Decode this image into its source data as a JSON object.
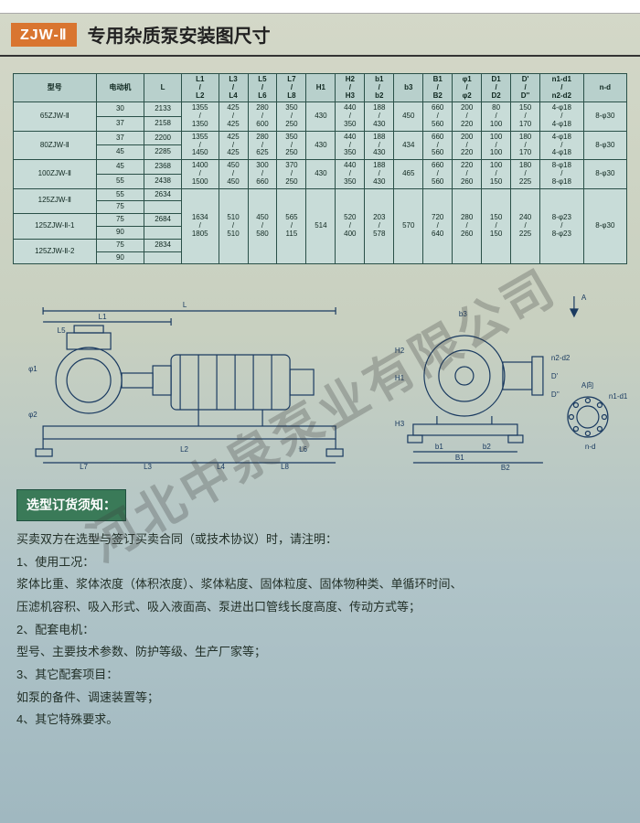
{
  "header": {
    "badge": "ZJW-Ⅱ",
    "title": "专用杂质泵安装图尺寸"
  },
  "table": {
    "headers": [
      "型号",
      "电动机",
      "L",
      "L1\n/\nL2",
      "L3\n/\nL4",
      "L5\n/\nL6",
      "L7\n/\nL8",
      "H1",
      "H2\n/\nH3",
      "b1\n/\nb2",
      "b3",
      "B1\n/\nB2",
      "φ1\n/\nφ2",
      "D1\n/\nD2",
      "D'\n/\nD''",
      "n1-d1\n/\nn2-d2",
      "n-d"
    ],
    "rows": [
      [
        "65ZJW-Ⅱ",
        "30",
        "2133",
        "1355\n/\n1350",
        "425\n/\n425",
        "280\n/\n600",
        "350\n/\n250",
        "430",
        "440\n/\n350",
        "188\n/\n430",
        "450",
        "660\n/\n560",
        "200\n/\n220",
        "80\n/\n100",
        "150\n/\n170",
        "4-φ18\n/\n4-φ18",
        "8-φ30"
      ],
      [
        "",
        "37",
        "2158",
        "",
        "",
        "",
        "",
        "",
        "",
        "",
        "",
        "",
        "",
        "",
        "",
        "",
        ""
      ],
      [
        "80ZJW-Ⅱ",
        "37",
        "2200",
        "1355\n/\n1450",
        "425\n/\n425",
        "280\n/\n625",
        "350\n/\n250",
        "430",
        "440\n/\n350",
        "188\n/\n430",
        "434",
        "660\n/\n560",
        "200\n/\n220",
        "100\n/\n100",
        "180\n/\n170",
        "4-φ18\n/\n4-φ18",
        "8-φ30"
      ],
      [
        "",
        "45",
        "2285",
        "",
        "",
        "",
        "",
        "",
        "",
        "",
        "",
        "",
        "",
        "",
        "",
        "",
        ""
      ],
      [
        "100ZJW-Ⅱ",
        "45",
        "2368",
        "1400\n/\n1500",
        "450\n/\n450",
        "300\n/\n660",
        "370\n/\n250",
        "430",
        "440\n/\n350",
        "188\n/\n430",
        "465",
        "660\n/\n560",
        "220\n/\n260",
        "100\n/\n150",
        "180\n/\n225",
        "8-φ18\n/\n8-φ18",
        "8-φ30"
      ],
      [
        "",
        "55",
        "2438",
        "",
        "",
        "",
        "",
        "",
        "",
        "",
        "",
        "",
        "",
        "",
        "",
        "",
        ""
      ],
      [
        "125ZJW-Ⅱ",
        "55",
        "2634",
        "1634\n/\n1805",
        "510\n/\n510",
        "450\n/\n580",
        "565\n/\n115",
        "514",
        "520\n/\n400",
        "203\n/\n578",
        "570",
        "720\n/\n640",
        "280\n/\n260",
        "150\n/\n150",
        "240\n/\n225",
        "8-φ23\n/\n8-φ23",
        "8-φ30"
      ],
      [
        "",
        "75",
        "",
        "",
        "",
        "",
        "",
        "",
        "",
        "",
        "",
        "",
        "",
        "",
        "",
        "",
        ""
      ],
      [
        "125ZJW-Ⅱ-1",
        "75",
        "2684",
        "",
        "",
        "",
        "",
        "",
        "",
        "",
        "",
        "",
        "",
        "",
        "",
        "",
        ""
      ],
      [
        "",
        "90",
        "",
        "",
        "",
        "",
        "",
        "",
        "",
        "",
        "",
        "",
        "",
        "",
        "",
        "",
        ""
      ],
      [
        "125ZJW-Ⅱ-2",
        "75",
        "2834",
        "",
        "",
        "",
        "",
        "",
        "",
        "",
        "",
        "",
        "",
        "",
        "",
        "",
        ""
      ],
      [
        "",
        "90",
        "",
        "",
        "",
        "",
        "",
        "",
        "",
        "",
        "",
        "",
        "",
        "",
        "",
        "",
        ""
      ]
    ]
  },
  "diagram": {
    "left_labels": [
      "L1",
      "L5",
      "L",
      "L3",
      "L4",
      "L6",
      "L7",
      "L8",
      "L2",
      "φ1",
      "φ2"
    ],
    "right_labels": [
      "A",
      "b1",
      "b2",
      "b3",
      "B1",
      "B2",
      "H1",
      "H2",
      "H3",
      "D'",
      "D''",
      "n1-d1",
      "n2-d2",
      "n-d",
      "A向"
    ]
  },
  "notes": {
    "heading": "选型订货须知：",
    "intro": "买卖双方在选型与签订买卖合同（或技术协议）时，请注明：",
    "items": [
      "1、使用工况：",
      "浆体比重、浆体浓度（体积浓度）、浆体粘度、固体粒度、固体物种类、单循环时间、",
      "压滤机容积、吸入形式、吸入液面高、泵进出口管线长度高度、传动方式等；",
      "2、配套电机：",
      "型号、主要技术参数、防护等级、生产厂家等；",
      "3、其它配套项目：",
      "如泵的备件、调速装置等；",
      "4、其它特殊要求。"
    ]
  },
  "watermark": "河北中泉泵业有限公司",
  "colors": {
    "badge_bg": "#d97530",
    "table_border": "#2a5048",
    "table_bg": "#c8dcd8",
    "notes_title_bg": "#3a7a58",
    "diagram_stroke": "#1a3a60"
  }
}
